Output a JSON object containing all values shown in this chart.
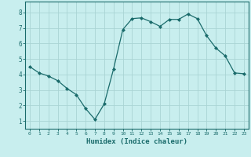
{
  "x": [
    0,
    1,
    2,
    3,
    4,
    5,
    6,
    7,
    8,
    9,
    10,
    11,
    12,
    13,
    14,
    15,
    16,
    17,
    18,
    19,
    20,
    21,
    22,
    23
  ],
  "y": [
    4.5,
    4.1,
    3.9,
    3.6,
    3.1,
    2.7,
    1.8,
    1.1,
    2.1,
    4.35,
    6.9,
    7.6,
    7.65,
    7.4,
    7.1,
    7.55,
    7.55,
    7.9,
    7.6,
    6.5,
    5.7,
    5.2,
    4.1,
    4.05
  ],
  "line_color": "#1a6b6b",
  "marker": "D",
  "marker_size": 2.0,
  "bg_color": "#c8eeee",
  "grid_color": "#aad4d4",
  "tick_color": "#1a6b6b",
  "xlabel": "Humidex (Indice chaleur)",
  "xlabel_color": "#1a6b6b",
  "xlim": [
    -0.5,
    23.5
  ],
  "ylim": [
    0.5,
    8.7
  ],
  "yticks": [
    1,
    2,
    3,
    4,
    5,
    6,
    7,
    8
  ],
  "xticks": [
    0,
    1,
    2,
    3,
    4,
    5,
    6,
    7,
    8,
    9,
    10,
    11,
    12,
    13,
    14,
    15,
    16,
    17,
    18,
    19,
    20,
    21,
    22,
    23
  ],
  "figsize": [
    3.2,
    2.0
  ],
  "dpi": 100
}
